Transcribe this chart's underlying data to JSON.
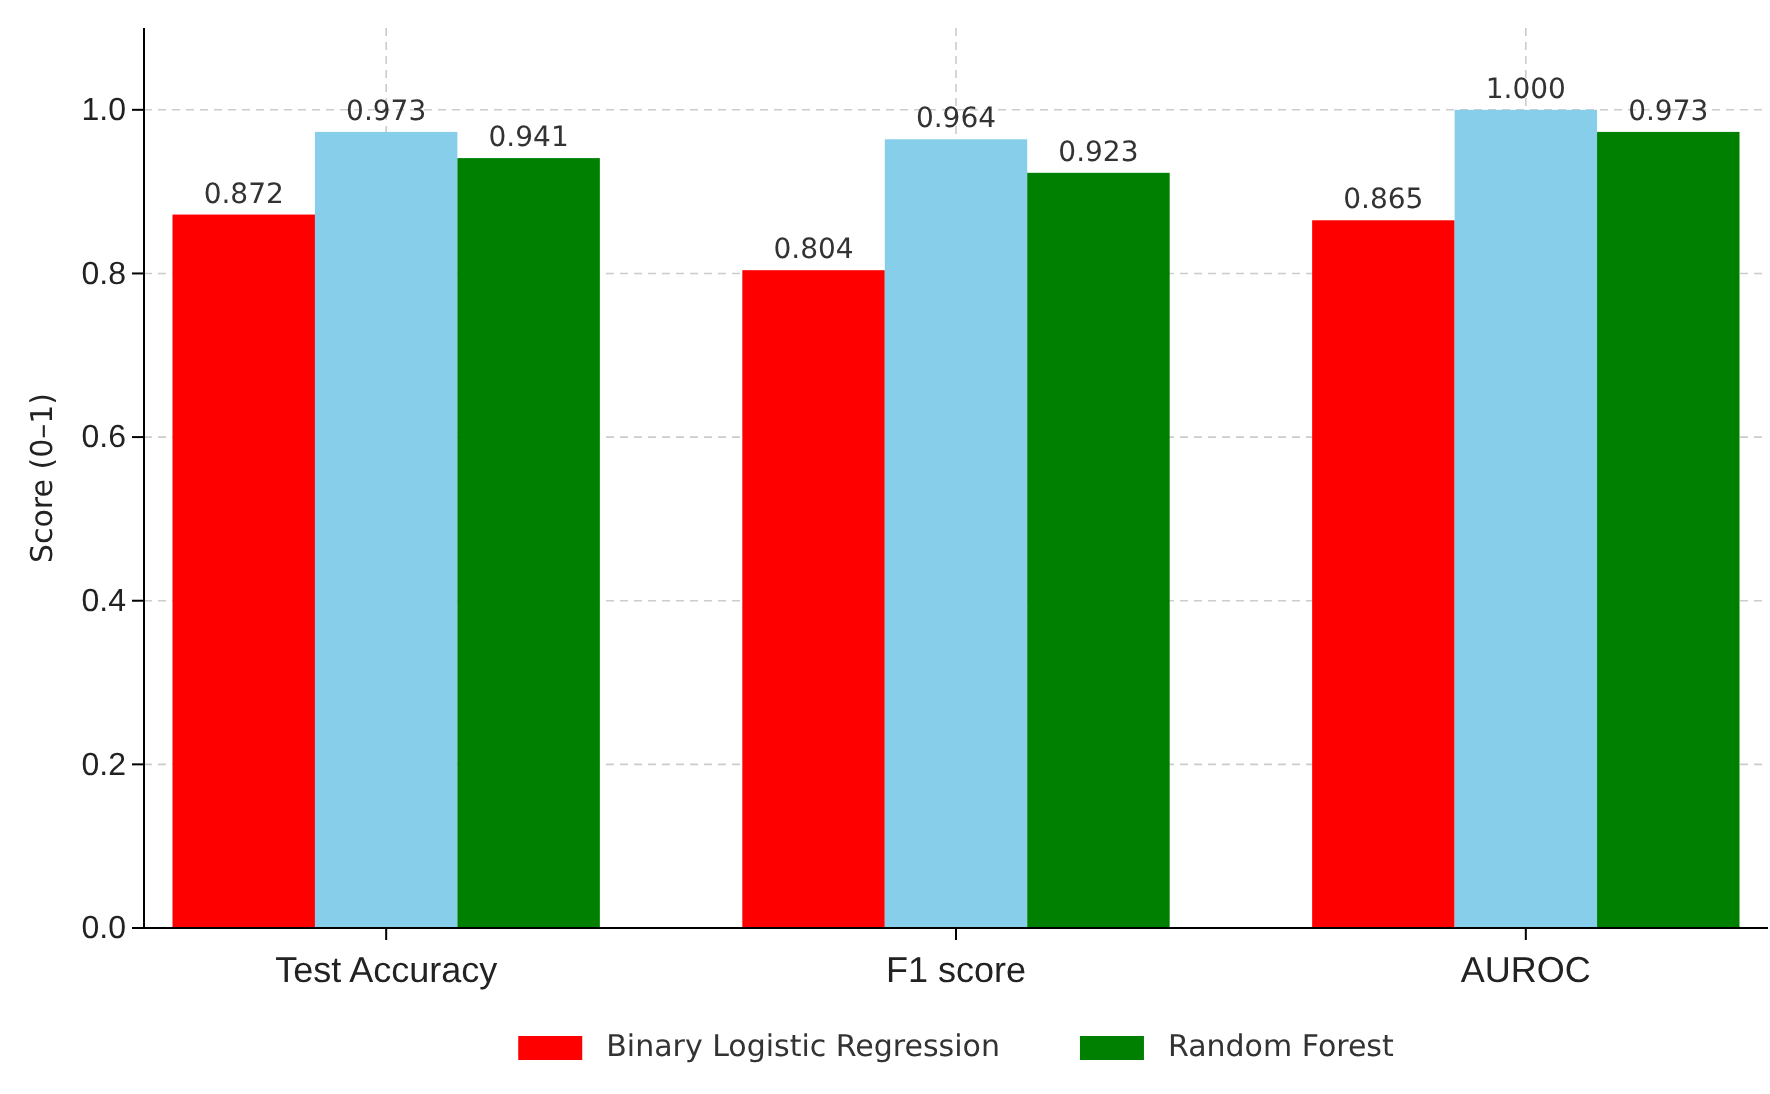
{
  "chart_data": {
    "type": "bar",
    "ylabel": "Score (0–1)",
    "categories": [
      "Test Accuracy",
      "F1 score",
      "AUROC"
    ],
    "series": [
      {
        "name": "Binary Logistic Regression",
        "color": "#ff0000",
        "values": [
          0.872,
          0.804,
          0.865
        ]
      },
      {
        "color": "#87ceeb",
        "values": [
          0.973,
          0.964,
          1.0
        ]
      },
      {
        "name": "Random Forest",
        "color": "#008000",
        "values": [
          0.941,
          0.923,
          0.973
        ]
      }
    ],
    "ylim": [
      0,
      1.1
    ],
    "yticks": [
      {
        "value": 0,
        "label": "0.0"
      },
      {
        "value": 0.2,
        "label": "0.2"
      },
      {
        "value": 0.4,
        "label": "0.4"
      },
      {
        "value": 0.6,
        "label": "0.6"
      },
      {
        "value": 0.8,
        "label": "0.8"
      },
      {
        "value": 1,
        "label": "1.0"
      }
    ],
    "value_labels": [
      [
        "0.872",
        "0.804",
        "0.865"
      ],
      [
        "0.973",
        "0.964",
        "1.000"
      ],
      [
        "0.941",
        "0.923",
        "0.973"
      ]
    ],
    "grid": true,
    "legend": "bottom"
  }
}
